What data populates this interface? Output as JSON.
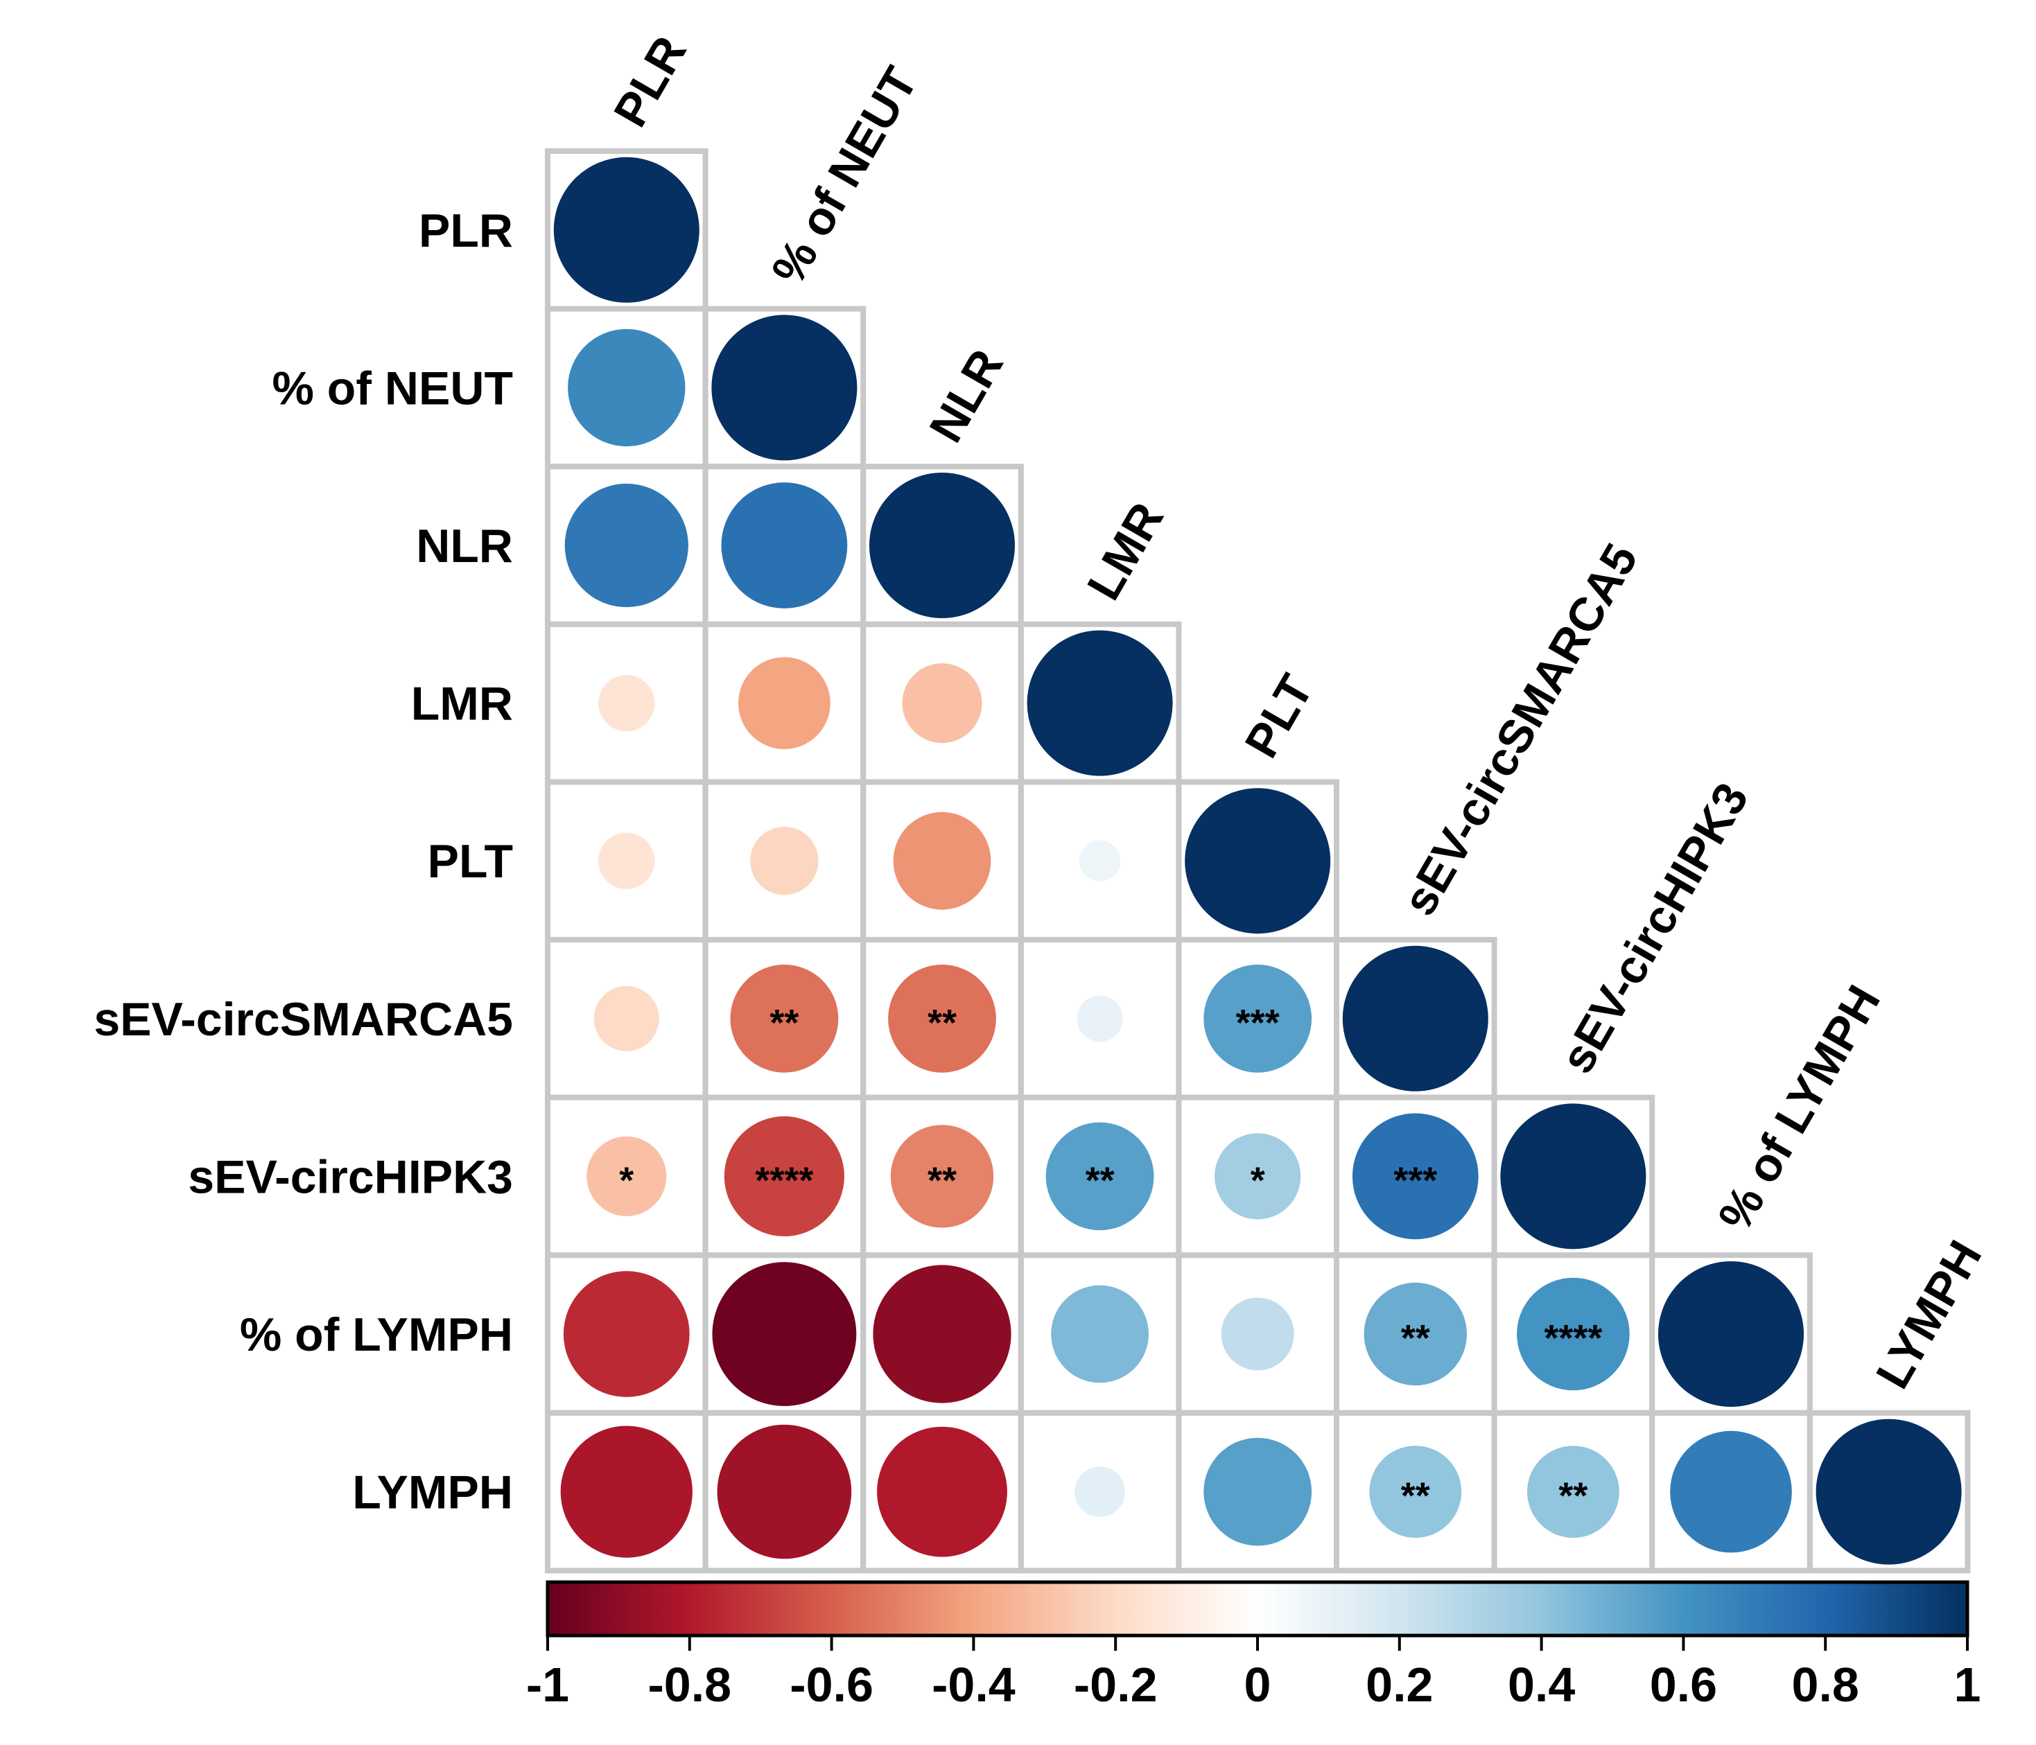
{
  "chart_data": {
    "type": "heatmap",
    "subtype": "correlation-matrix-lower-triangle",
    "variables": [
      "PLR",
      "% of NEUT",
      "NLR",
      "LMR",
      "PLT",
      "sEV-circSMARCA5",
      "sEV-circHIPK3",
      "% of  LYMPH",
      "LYMPH"
    ],
    "matrix": [
      [
        1.0
      ],
      [
        0.65,
        1.0
      ],
      [
        0.72,
        0.75,
        1.0
      ],
      [
        -0.15,
        -0.4,
        -0.3,
        1.0
      ],
      [
        -0.15,
        -0.22,
        -0.45,
        0.08,
        1.0
      ],
      [
        -0.2,
        -0.55,
        -0.55,
        0.1,
        0.55,
        1.0
      ],
      [
        -0.3,
        -0.68,
        -0.5,
        0.55,
        0.35,
        0.75,
        1.0
      ],
      [
        -0.75,
        -0.98,
        -0.9,
        0.45,
        0.25,
        0.5,
        0.6,
        1.0
      ],
      [
        -0.82,
        -0.85,
        -0.8,
        0.12,
        0.55,
        0.4,
        0.4,
        0.7,
        1.0
      ]
    ],
    "significance": [
      [
        ""
      ],
      [
        "",
        ""
      ],
      [
        "",
        "",
        ""
      ],
      [
        "",
        "",
        "",
        ""
      ],
      [
        "",
        "",
        "",
        "",
        ""
      ],
      [
        "",
        "**",
        "**",
        "",
        "***",
        ""
      ],
      [
        "*",
        "****",
        "**",
        "**",
        "*",
        "***",
        ""
      ],
      [
        "",
        "",
        "",
        "",
        "",
        "**",
        "****",
        ""
      ],
      [
        "",
        "",
        "",
        "",
        "",
        "**",
        "**",
        "",
        ""
      ]
    ],
    "colorbar": {
      "range": [
        -1,
        1
      ],
      "ticks": [
        "-1",
        "-0.8",
        "-0.6",
        "-0.4",
        "-0.2",
        "0",
        "0.2",
        "0.4",
        "0.6",
        "0.8",
        "1"
      ],
      "colors": [
        "#67001f",
        "#b2182b",
        "#d6604d",
        "#f4a582",
        "#fddbc7",
        "#ffffff",
        "#d1e5f0",
        "#92c5de",
        "#4393c3",
        "#2166ac",
        "#053061"
      ]
    }
  }
}
